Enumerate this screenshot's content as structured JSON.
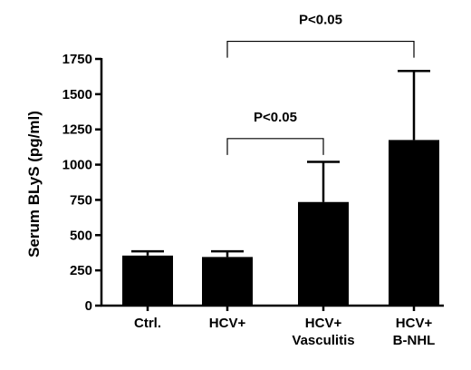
{
  "chart_data": {
    "type": "bar",
    "title": "",
    "xlabel": "",
    "ylabel": "Serum BLyS (pg/ml)",
    "ylim": [
      0,
      1750
    ],
    "yticks": [
      0,
      250,
      500,
      750,
      1000,
      1250,
      1500,
      1750
    ],
    "grid": false,
    "categories": [
      {
        "id": "ctrl",
        "lines": [
          "Ctrl."
        ]
      },
      {
        "id": "hcv",
        "lines": [
          "HCV+"
        ]
      },
      {
        "id": "hcv-vasculitis",
        "lines": [
          "HCV+",
          "Vasculitis"
        ]
      },
      {
        "id": "hcv-bnhl",
        "lines": [
          "HCV+",
          "B-NHL"
        ]
      }
    ],
    "values": [
      355,
      345,
      735,
      1175
    ],
    "error_upper": [
      385,
      385,
      1020,
      1665
    ],
    "bar_color": "#000000",
    "comparisons": [
      {
        "from": 1,
        "to": 2,
        "label": "P<0.05",
        "bracket_y": 1185
      },
      {
        "from": 1,
        "to": 3,
        "label": "P<0.05",
        "bracket_y": 1875
      }
    ]
  }
}
